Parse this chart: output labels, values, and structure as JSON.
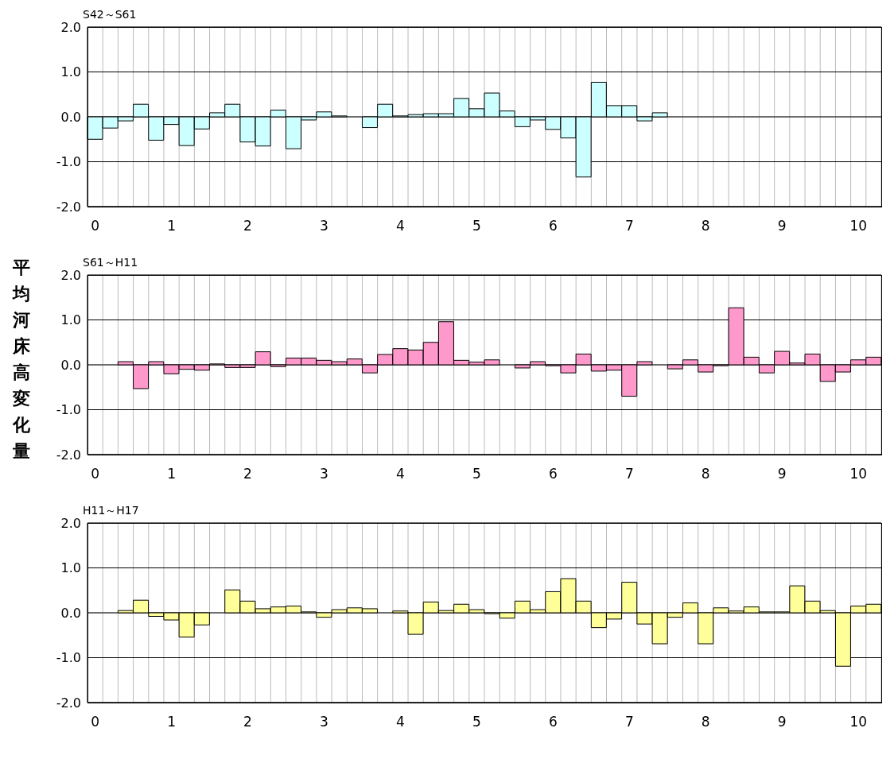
{
  "chart_data": [
    {
      "type": "bar",
      "title": "S42～S61",
      "categories": [
        "0",
        null,
        null,
        null,
        null,
        "1",
        null,
        null,
        null,
        null,
        "2",
        null,
        null,
        null,
        null,
        "3",
        null,
        null,
        null,
        null,
        "4",
        null,
        null,
        null,
        null,
        "5",
        null,
        null,
        null,
        null,
        "6",
        null,
        null,
        null,
        null,
        "7",
        null,
        null,
        null,
        null,
        "8",
        null,
        null,
        null,
        null,
        "9",
        null,
        null,
        null,
        null,
        "10",
        null
      ],
      "series": [
        {
          "color": "#ccffff",
          "values": [
            -0.5,
            -0.25,
            -0.09,
            0.28,
            -0.52,
            -0.17,
            -0.64,
            -0.27,
            0.09,
            0.28,
            -0.56,
            -0.65,
            0.15,
            -0.71,
            -0.07,
            0.11,
            0.02,
            null,
            -0.24,
            0.28,
            0.02,
            0.05,
            0.07,
            0.07,
            0.41,
            0.18,
            0.53,
            0.13,
            -0.22,
            -0.07,
            -0.28,
            -0.47,
            -1.34,
            0.77,
            0.25,
            0.25,
            -0.09,
            0.09,
            null,
            null,
            null,
            null,
            null,
            null,
            null,
            null,
            null,
            null,
            null,
            null,
            null,
            null
          ]
        }
      ],
      "ylim": [
        -2,
        2
      ],
      "yticks": [
        {
          "value": -2,
          "label": "-2.0"
        },
        {
          "value": -1,
          "label": "-1.0"
        },
        {
          "value": 0,
          "label": "0.0"
        },
        {
          "value": 1,
          "label": "1.0"
        },
        {
          "value": 2,
          "label": "2.0"
        }
      ],
      "grid": true
    },
    {
      "type": "bar",
      "title": "S61～H11",
      "ylabel": "平均河床高変化量",
      "categories": [
        "0",
        null,
        null,
        null,
        null,
        "1",
        null,
        null,
        null,
        null,
        "2",
        null,
        null,
        null,
        null,
        "3",
        null,
        null,
        null,
        null,
        "4",
        null,
        null,
        null,
        null,
        "5",
        null,
        null,
        null,
        null,
        "6",
        null,
        null,
        null,
        null,
        "7",
        null,
        null,
        null,
        null,
        "8",
        null,
        null,
        null,
        null,
        "9",
        null,
        null,
        null,
        null,
        "10",
        null
      ],
      "series": [
        {
          "color": "#ff99cc",
          "values": [
            null,
            null,
            0.07,
            -0.53,
            0.07,
            -0.2,
            -0.1,
            -0.12,
            0.02,
            -0.06,
            -0.06,
            0.29,
            -0.04,
            0.15,
            0.15,
            0.1,
            0.07,
            0.13,
            -0.18,
            0.23,
            0.36,
            0.33,
            0.5,
            0.96,
            0.1,
            0.06,
            0.11,
            null,
            -0.07,
            0.07,
            -0.02,
            -0.18,
            0.24,
            -0.14,
            -0.12,
            -0.7,
            0.07,
            null,
            -0.09,
            0.11,
            -0.16,
            -0.02,
            1.27,
            0.17,
            -0.18,
            0.3,
            0.04,
            0.24,
            -0.37,
            -0.16,
            0.11,
            0.17
          ]
        }
      ],
      "ylim": [
        -2,
        2
      ],
      "yticks": [
        {
          "value": -2,
          "label": "-2.0"
        },
        {
          "value": -1,
          "label": "-1.0"
        },
        {
          "value": 0,
          "label": "0.0"
        },
        {
          "value": 1,
          "label": "1.0"
        },
        {
          "value": 2,
          "label": "2.0"
        }
      ],
      "grid": true
    },
    {
      "type": "bar",
      "title": "H11～H17",
      "categories": [
        "0",
        null,
        null,
        null,
        null,
        "1",
        null,
        null,
        null,
        null,
        "2",
        null,
        null,
        null,
        null,
        "3",
        null,
        null,
        null,
        null,
        "4",
        null,
        null,
        null,
        null,
        "5",
        null,
        null,
        null,
        null,
        "6",
        null,
        null,
        null,
        null,
        "7",
        null,
        null,
        null,
        null,
        "8",
        null,
        null,
        null,
        null,
        "9",
        null,
        null,
        null,
        null,
        "10",
        null
      ],
      "series": [
        {
          "color": "#ffff99",
          "values": [
            null,
            null,
            0.05,
            0.28,
            -0.08,
            -0.16,
            -0.54,
            -0.27,
            null,
            0.51,
            0.26,
            0.09,
            0.13,
            0.15,
            0.02,
            -0.1,
            0.07,
            0.11,
            0.09,
            null,
            0.04,
            -0.48,
            0.24,
            0.05,
            0.19,
            0.07,
            -0.02,
            -0.12,
            0.26,
            0.07,
            0.47,
            0.76,
            0.26,
            -0.33,
            -0.14,
            0.68,
            -0.25,
            -0.69,
            -0.1,
            0.22,
            -0.69,
            0.11,
            0.04,
            0.13,
            0.02,
            0.02,
            0.6,
            0.26,
            0.05,
            -1.19,
            0.15,
            0.19
          ]
        }
      ],
      "ylim": [
        -2,
        2
      ],
      "yticks": [
        {
          "value": -2,
          "label": "-2.0"
        },
        {
          "value": -1,
          "label": "-1.0"
        },
        {
          "value": 0,
          "label": "0.0"
        },
        {
          "value": 1,
          "label": "1.0"
        },
        {
          "value": 2,
          "label": "2.0"
        }
      ],
      "grid": true
    }
  ]
}
